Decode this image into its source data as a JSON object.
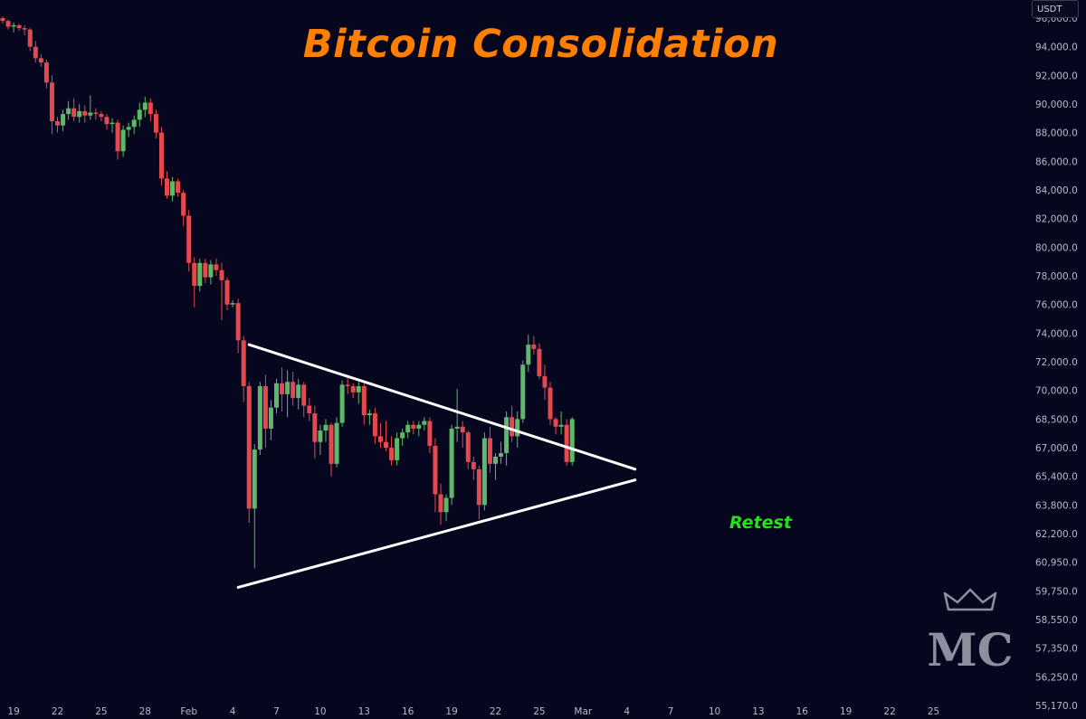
{
  "chart_data": {
    "type": "candlestick",
    "title": "Bitcoin Consolidation",
    "currency": "USDT",
    "annotation": "Retest",
    "y_axis_side": "right",
    "grid": false,
    "ylim": [
      55170,
      97000
    ],
    "y_ticks": [
      {
        "label": "96,000.0",
        "value": 96000
      },
      {
        "label": "94,000.0",
        "value": 94000
      },
      {
        "label": "92,000.0",
        "value": 92000
      },
      {
        "label": "90,000.0",
        "value": 90000
      },
      {
        "label": "88,000.0",
        "value": 88000
      },
      {
        "label": "86,000.0",
        "value": 86000
      },
      {
        "label": "84,000.0",
        "value": 84000
      },
      {
        "label": "82,000.0",
        "value": 82000
      },
      {
        "label": "80,000.0",
        "value": 80000
      },
      {
        "label": "78,000.0",
        "value": 78000
      },
      {
        "label": "76,000.0",
        "value": 76000
      },
      {
        "label": "74,000.0",
        "value": 74000
      },
      {
        "label": "72,000.0",
        "value": 72000
      },
      {
        "label": "70,000.0",
        "value": 70000
      },
      {
        "label": "68,500.0",
        "value": 68500
      },
      {
        "label": "67,000.0",
        "value": 67000
      },
      {
        "label": "65,400.0",
        "value": 65400
      },
      {
        "label": "63,800.0",
        "value": 63800
      },
      {
        "label": "62,200.0",
        "value": 62200
      },
      {
        "label": "60,950.0",
        "value": 60950
      },
      {
        "label": "59,750.0",
        "value": 59750
      },
      {
        "label": "58,550.0",
        "value": 58550
      },
      {
        "label": "57,350.0",
        "value": 57350
      },
      {
        "label": "56,250.0",
        "value": 56250
      },
      {
        "label": "55,170.0",
        "value": 55170
      }
    ],
    "x_ticks": [
      {
        "label": "19",
        "index": 2
      },
      {
        "label": "22",
        "index": 10
      },
      {
        "label": "25",
        "index": 18
      },
      {
        "label": "28",
        "index": 26
      },
      {
        "label": "Feb",
        "index": 34
      },
      {
        "label": "4",
        "index": 42
      },
      {
        "label": "7",
        "index": 50
      },
      {
        "label": "10",
        "index": 58
      },
      {
        "label": "13",
        "index": 66
      },
      {
        "label": "16",
        "index": 74
      },
      {
        "label": "19",
        "index": 82
      },
      {
        "label": "22",
        "index": 90
      },
      {
        "label": "25",
        "index": 98
      },
      {
        "label": "Mar",
        "index": 106
      },
      {
        "label": "4",
        "index": 114
      },
      {
        "label": "7",
        "index": 122
      },
      {
        "label": "10",
        "index": 130
      },
      {
        "label": "13",
        "index": 138
      },
      {
        "label": "16",
        "index": 146
      },
      {
        "label": "19",
        "index": 154
      },
      {
        "label": "22",
        "index": 162
      },
      {
        "label": "25",
        "index": 170
      }
    ],
    "candles": [
      [
        96000,
        96100,
        95600,
        95800
      ],
      [
        95800,
        95900,
        95200,
        95400
      ],
      [
        95400,
        95700,
        95000,
        95500
      ],
      [
        95500,
        95600,
        95100,
        95300
      ],
      [
        95300,
        95500,
        94800,
        95200
      ],
      [
        95200,
        95300,
        93700,
        94000
      ],
      [
        94000,
        94400,
        92900,
        93200
      ],
      [
        93200,
        93500,
        92600,
        92900
      ],
      [
        92900,
        93100,
        91100,
        91500
      ],
      [
        91500,
        92000,
        87900,
        88800
      ],
      [
        88800,
        89100,
        88000,
        88500
      ],
      [
        88500,
        89600,
        88100,
        89300
      ],
      [
        89300,
        90200,
        88900,
        89700
      ],
      [
        89700,
        90400,
        88800,
        89100
      ],
      [
        89100,
        90000,
        88700,
        89500
      ],
      [
        89500,
        89900,
        88700,
        89200
      ],
      [
        89200,
        90600,
        88900,
        89400
      ],
      [
        89400,
        89700,
        88900,
        89300
      ],
      [
        89300,
        89500,
        88800,
        89100
      ],
      [
        89100,
        89300,
        88200,
        88600
      ],
      [
        88600,
        89000,
        88000,
        88700
      ],
      [
        88700,
        88900,
        86100,
        86700
      ],
      [
        86700,
        88500,
        86300,
        88200
      ],
      [
        88200,
        88700,
        87700,
        88400
      ],
      [
        88400,
        89200,
        87900,
        88900
      ],
      [
        88900,
        90100,
        88400,
        89600
      ],
      [
        89600,
        90500,
        89100,
        90100
      ],
      [
        90100,
        90400,
        88800,
        89300
      ],
      [
        89300,
        89600,
        87600,
        88000
      ],
      [
        88000,
        88400,
        84300,
        84800
      ],
      [
        84800,
        85300,
        83400,
        83600
      ],
      [
        83600,
        84900,
        83200,
        84600
      ],
      [
        84600,
        84800,
        83500,
        83800
      ],
      [
        83800,
        84000,
        81500,
        82200
      ],
      [
        82200,
        82600,
        78300,
        78900
      ],
      [
        78900,
        79300,
        75800,
        77300
      ],
      [
        77300,
        79200,
        76900,
        78900
      ],
      [
        78900,
        79200,
        77500,
        77900
      ],
      [
        77900,
        79100,
        77400,
        78800
      ],
      [
        78800,
        79200,
        78000,
        78400
      ],
      [
        78400,
        78900,
        74900,
        77700
      ],
      [
        77700,
        77900,
        75600,
        76000
      ],
      [
        76000,
        76300,
        75800,
        76100
      ],
      [
        76100,
        76400,
        72600,
        73500
      ],
      [
        73500,
        73800,
        69400,
        70300
      ],
      [
        70300,
        70600,
        62800,
        63600
      ],
      [
        63600,
        67200,
        60700,
        66900
      ],
      [
        66900,
        70600,
        66600,
        70300
      ],
      [
        70300,
        71100,
        67000,
        68000
      ],
      [
        68000,
        69500,
        67400,
        69100
      ],
      [
        69100,
        70800,
        68800,
        70500
      ],
      [
        70500,
        71600,
        68900,
        69800
      ],
      [
        69800,
        71400,
        68600,
        70600
      ],
      [
        70600,
        71300,
        69200,
        69600
      ],
      [
        69600,
        70800,
        69000,
        70400
      ],
      [
        70400,
        70600,
        68600,
        69200
      ],
      [
        69200,
        69600,
        68400,
        68800
      ],
      [
        68800,
        69200,
        66400,
        67300
      ],
      [
        67300,
        68200,
        66600,
        67900
      ],
      [
        67900,
        68500,
        67300,
        68200
      ],
      [
        68200,
        68300,
        65400,
        66100
      ],
      [
        66100,
        68600,
        65900,
        68300
      ],
      [
        68300,
        70700,
        68100,
        70400
      ],
      [
        70400,
        71100,
        69800,
        70300
      ],
      [
        70300,
        70500,
        69600,
        69900
      ],
      [
        69900,
        70600,
        69300,
        70300
      ],
      [
        70300,
        70500,
        68200,
        68700
      ],
      [
        68700,
        69000,
        68200,
        68800
      ],
      [
        68800,
        69100,
        67200,
        67600
      ],
      [
        67600,
        68300,
        67000,
        67300
      ],
      [
        67300,
        68400,
        66800,
        67000
      ],
      [
        67000,
        67600,
        66000,
        66300
      ],
      [
        66300,
        67800,
        66000,
        67500
      ],
      [
        67500,
        68000,
        67100,
        67800
      ],
      [
        67800,
        68400,
        67500,
        68200
      ],
      [
        68200,
        68400,
        67700,
        68000
      ],
      [
        68000,
        68400,
        67600,
        68200
      ],
      [
        68200,
        68600,
        67900,
        68400
      ],
      [
        68400,
        68600,
        66700,
        67100
      ],
      [
        67100,
        67500,
        63400,
        64400
      ],
      [
        64400,
        65000,
        62700,
        63400
      ],
      [
        63400,
        64400,
        62900,
        64200
      ],
      [
        64200,
        68200,
        63800,
        68000
      ],
      [
        68000,
        70100,
        67300,
        68100
      ],
      [
        68100,
        68400,
        67000,
        67800
      ],
      [
        67800,
        67900,
        65800,
        66200
      ],
      [
        66200,
        66500,
        65200,
        65800
      ],
      [
        65800,
        66000,
        63000,
        63800
      ],
      [
        63800,
        67800,
        63500,
        67500
      ],
      [
        67500,
        68100,
        65600,
        66100
      ],
      [
        66100,
        66700,
        65200,
        66500
      ],
      [
        66500,
        67300,
        66100,
        66700
      ],
      [
        66700,
        68900,
        66000,
        68600
      ],
      [
        68600,
        69200,
        67300,
        67600
      ],
      [
        67600,
        68900,
        67000,
        68500
      ],
      [
        68500,
        72100,
        68300,
        71800
      ],
      [
        71800,
        73900,
        71300,
        73200
      ],
      [
        73200,
        73800,
        72500,
        72900
      ],
      [
        72900,
        73300,
        70800,
        71000
      ],
      [
        71000,
        71800,
        69500,
        70200
      ],
      [
        70200,
        70600,
        68200,
        68500
      ],
      [
        68500,
        68600,
        67700,
        68100
      ],
      [
        68100,
        68900,
        67700,
        68200
      ],
      [
        68200,
        68500,
        66000,
        66200
      ],
      [
        66200,
        68600,
        66000,
        68500
      ]
    ],
    "trendlines": [
      {
        "name": "descending-resistance",
        "from": {
          "index": 45.0,
          "value": 73200
        },
        "to": {
          "index": 115.5,
          "value": 65800
        }
      },
      {
        "name": "ascending-support",
        "from": {
          "index": 43.0,
          "value": 59900
        },
        "to": {
          "index": 115.5,
          "value": 65200
        }
      }
    ],
    "colors": {
      "background": "#06061f",
      "up": "#5fb86a",
      "down": "#e5484d",
      "trendline": "#ffffff",
      "title": "#ff7f00",
      "annotation": "#22e21a"
    },
    "watermark": {
      "text": "MC",
      "icon": "crown-icon"
    }
  }
}
